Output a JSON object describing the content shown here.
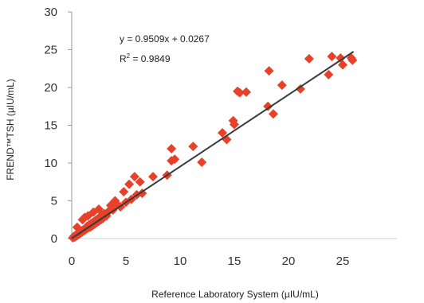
{
  "chart_data": {
    "type": "scatter",
    "title": "",
    "xlabel": "Reference Laboratory System (µIU/mL)",
    "ylabel": "FREND™TSH (µIU/mL)",
    "xlim": [
      0,
      30
    ],
    "ylim": [
      0,
      30
    ],
    "x_ticks": [
      "0",
      "5",
      "10",
      "15",
      "20",
      "25"
    ],
    "y_ticks": [
      "0",
      "5",
      "10",
      "15",
      "20",
      "25",
      "30"
    ],
    "grid": false,
    "legend": "none",
    "marker_color": "#e8412a",
    "line_color": "#3a3a3a",
    "equation": "y = 0.9509x + 0.0267",
    "r_squared_label": "R",
    "r_squared_exp": "2",
    "r_squared_value": " = 0.9849",
    "trendline": {
      "slope": 0.9509,
      "intercept": 0.0267,
      "x_range": [
        0,
        26
      ]
    },
    "points": [
      {
        "x": 0.1,
        "y": 0.1
      },
      {
        "x": 0.2,
        "y": 0.3
      },
      {
        "x": 0.3,
        "y": 0.2
      },
      {
        "x": 0.4,
        "y": 0.5
      },
      {
        "x": 0.5,
        "y": 0.4
      },
      {
        "x": 0.6,
        "y": 0.7
      },
      {
        "x": 0.7,
        "y": 0.6
      },
      {
        "x": 0.8,
        "y": 0.9
      },
      {
        "x": 0.9,
        "y": 0.8
      },
      {
        "x": 1.0,
        "y": 1.1
      },
      {
        "x": 1.1,
        "y": 1.0
      },
      {
        "x": 1.2,
        "y": 1.3
      },
      {
        "x": 1.3,
        "y": 1.2
      },
      {
        "x": 1.4,
        "y": 1.6
      },
      {
        "x": 1.5,
        "y": 1.4
      },
      {
        "x": 1.6,
        "y": 1.8
      },
      {
        "x": 1.7,
        "y": 1.5
      },
      {
        "x": 1.8,
        "y": 2.0
      },
      {
        "x": 1.9,
        "y": 1.7
      },
      {
        "x": 2.0,
        "y": 2.2
      },
      {
        "x": 2.1,
        "y": 1.9
      },
      {
        "x": 2.2,
        "y": 2.4
      },
      {
        "x": 2.3,
        "y": 2.1
      },
      {
        "x": 2.4,
        "y": 2.6
      },
      {
        "x": 2.5,
        "y": 2.3
      },
      {
        "x": 2.6,
        "y": 2.9
      },
      {
        "x": 2.7,
        "y": 2.5
      },
      {
        "x": 2.8,
        "y": 3.1
      },
      {
        "x": 2.9,
        "y": 2.7
      },
      {
        "x": 3.0,
        "y": 3.3
      },
      {
        "x": 1.0,
        "y": 2.5
      },
      {
        "x": 1.5,
        "y": 3.0
      },
      {
        "x": 2.0,
        "y": 3.5
      },
      {
        "x": 2.5,
        "y": 3.9
      },
      {
        "x": 0.5,
        "y": 1.5
      },
      {
        "x": 1.2,
        "y": 2.8
      },
      {
        "x": 3.2,
        "y": 3.0
      },
      {
        "x": 3.4,
        "y": 3.6
      },
      {
        "x": 3.6,
        "y": 4.4
      },
      {
        "x": 3.8,
        "y": 3.8
      },
      {
        "x": 4.0,
        "y": 5.0
      },
      {
        "x": 4.2,
        "y": 4.5
      },
      {
        "x": 4.5,
        "y": 4.2
      },
      {
        "x": 4.8,
        "y": 6.2
      },
      {
        "x": 5.0,
        "y": 4.8
      },
      {
        "x": 5.3,
        "y": 7.2
      },
      {
        "x": 5.5,
        "y": 5.2
      },
      {
        "x": 5.8,
        "y": 8.2
      },
      {
        "x": 6.0,
        "y": 5.8
      },
      {
        "x": 6.3,
        "y": 7.5
      },
      {
        "x": 6.5,
        "y": 6.0
      },
      {
        "x": 7.5,
        "y": 8.2
      },
      {
        "x": 8.8,
        "y": 8.4
      },
      {
        "x": 9.2,
        "y": 10.3
      },
      {
        "x": 9.2,
        "y": 11.9
      },
      {
        "x": 9.5,
        "y": 10.5
      },
      {
        "x": 11.2,
        "y": 12.2
      },
      {
        "x": 12.0,
        "y": 10.1
      },
      {
        "x": 13.9,
        "y": 14.0
      },
      {
        "x": 14.3,
        "y": 13.1
      },
      {
        "x": 14.9,
        "y": 15.6
      },
      {
        "x": 15.0,
        "y": 15.1
      },
      {
        "x": 15.3,
        "y": 19.5
      },
      {
        "x": 15.5,
        "y": 19.3
      },
      {
        "x": 16.1,
        "y": 19.4
      },
      {
        "x": 18.1,
        "y": 17.5
      },
      {
        "x": 18.2,
        "y": 22.2
      },
      {
        "x": 18.6,
        "y": 16.5
      },
      {
        "x": 19.4,
        "y": 20.3
      },
      {
        "x": 21.1,
        "y": 19.8
      },
      {
        "x": 21.9,
        "y": 23.8
      },
      {
        "x": 23.7,
        "y": 21.7
      },
      {
        "x": 24.0,
        "y": 24.1
      },
      {
        "x": 24.8,
        "y": 23.9
      },
      {
        "x": 25.0,
        "y": 23.0
      },
      {
        "x": 25.8,
        "y": 23.9
      },
      {
        "x": 25.9,
        "y": 23.6
      }
    ]
  }
}
